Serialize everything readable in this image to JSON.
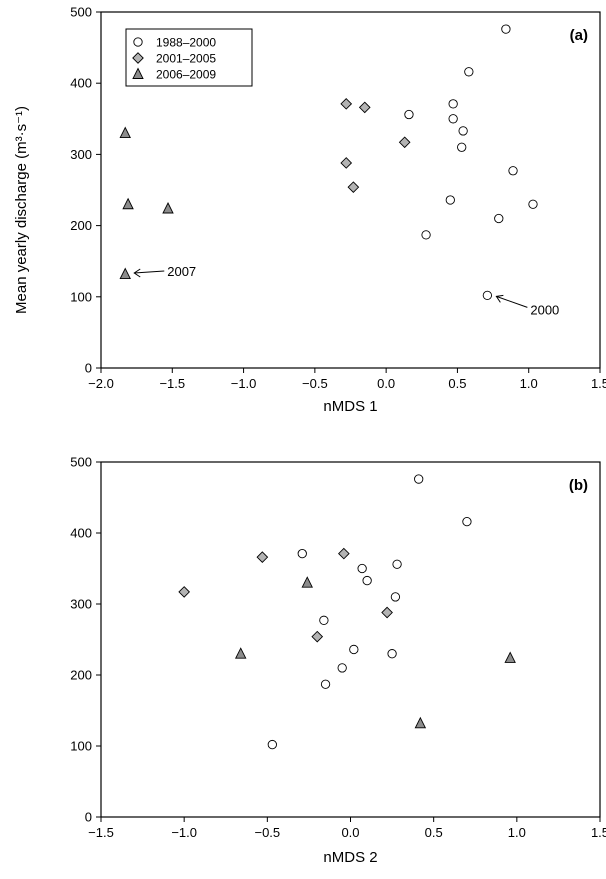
{
  "chart_data": [
    {
      "type": "scatter",
      "panel": "(a)",
      "xlabel": "nMDS 1",
      "ylabel": "Mean yearly discharge (m³·s⁻¹)",
      "xlim": [
        -2.0,
        1.5
      ],
      "ylim": [
        0,
        500
      ],
      "xticks": [
        "−2.0",
        "−1.5",
        "−1.0",
        "−0.5",
        "0.0",
        "0.5",
        "1.0",
        "1.5"
      ],
      "yticks": [
        "0",
        "100",
        "200",
        "300",
        "400",
        "500"
      ],
      "legend": {
        "position": "top-left"
      },
      "series": [
        {
          "name": "1988–2000",
          "marker": "circle",
          "color": "#ffffff",
          "points": [
            [
              0.84,
              476
            ],
            [
              0.58,
              416
            ],
            [
              0.47,
              371
            ],
            [
              0.16,
              356
            ],
            [
              0.47,
              350
            ],
            [
              0.54,
              333
            ],
            [
              0.53,
              310
            ],
            [
              0.89,
              277
            ],
            [
              0.45,
              236
            ],
            [
              1.03,
              230
            ],
            [
              0.79,
              210
            ],
            [
              0.28,
              187
            ],
            [
              0.71,
              102
            ]
          ]
        },
        {
          "name": "2001–2005",
          "marker": "diamond",
          "color": "#b3b3b3",
          "points": [
            [
              -0.28,
              371
            ],
            [
              -0.15,
              366
            ],
            [
              0.13,
              317
            ],
            [
              -0.28,
              288
            ],
            [
              -0.23,
              254
            ]
          ]
        },
        {
          "name": "2006–2009",
          "marker": "triangle",
          "color": "#8c8c8c",
          "points": [
            [
              -1.83,
              330
            ],
            [
              -1.81,
              230
            ],
            [
              -1.53,
              224
            ],
            [
              -1.83,
              132
            ]
          ]
        }
      ],
      "annotations": [
        {
          "text": "2007",
          "x": -1.83,
          "y": 132
        },
        {
          "text": "2000",
          "x": 0.71,
          "y": 102
        }
      ]
    },
    {
      "type": "scatter",
      "panel": "(b)",
      "xlabel": "nMDS 2",
      "ylabel": "",
      "xlim": [
        -1.5,
        1.5
      ],
      "ylim": [
        0,
        500
      ],
      "xticks": [
        "−1.5",
        "−1.0",
        "−0.5",
        "0.0",
        "0.5",
        "1.0",
        "1.5"
      ],
      "yticks": [
        "0",
        "100",
        "200",
        "300",
        "400",
        "500"
      ],
      "series": [
        {
          "name": "1988–2000",
          "marker": "circle",
          "color": "#ffffff",
          "points": [
            [
              0.41,
              476
            ],
            [
              0.7,
              416
            ],
            [
              -0.29,
              371
            ],
            [
              0.28,
              356
            ],
            [
              0.07,
              350
            ],
            [
              0.1,
              333
            ],
            [
              0.27,
              310
            ],
            [
              -0.16,
              277
            ],
            [
              0.02,
              236
            ],
            [
              0.25,
              230
            ],
            [
              -0.05,
              210
            ],
            [
              -0.15,
              187
            ],
            [
              -0.47,
              102
            ]
          ]
        },
        {
          "name": "2001–2005",
          "marker": "diamond",
          "color": "#b3b3b3",
          "points": [
            [
              -0.04,
              371
            ],
            [
              -0.53,
              366
            ],
            [
              -1.0,
              317
            ],
            [
              0.22,
              288
            ],
            [
              -0.2,
              254
            ]
          ]
        },
        {
          "name": "2006–2009",
          "marker": "triangle",
          "color": "#8c8c8c",
          "points": [
            [
              -0.26,
              330
            ],
            [
              -0.66,
              230
            ],
            [
              0.96,
              224
            ],
            [
              0.42,
              132
            ]
          ]
        }
      ]
    }
  ]
}
